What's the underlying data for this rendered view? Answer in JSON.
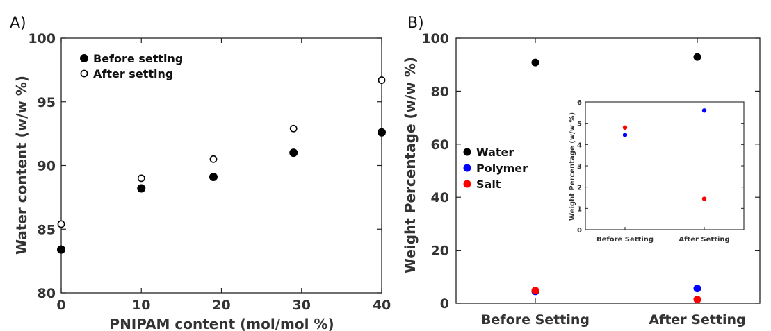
{
  "chart_data": [
    {
      "panel": "A)",
      "type": "scatter",
      "xlabel": "PNIPAM content (mol/mol %)",
      "ylabel": "Water content (w/w %)",
      "xlim": [
        0,
        40
      ],
      "ylim": [
        80,
        100
      ],
      "xticks": [
        "0",
        "10",
        "20",
        "30",
        "40"
      ],
      "yticks": [
        "80",
        "85",
        "90",
        "95",
        "100"
      ],
      "legend_position": "top-left",
      "series": [
        {
          "name": "Before setting",
          "marker": "filled-circle",
          "color": "#000000",
          "x": [
            0,
            10,
            19,
            29,
            40
          ],
          "y": [
            83.4,
            88.2,
            89.1,
            91.0,
            92.6
          ]
        },
        {
          "name": "After setting",
          "marker": "open-circle",
          "color": "#000000",
          "x": [
            0,
            10,
            19,
            29,
            40
          ],
          "y": [
            85.4,
            89.0,
            90.5,
            92.9,
            96.7
          ]
        }
      ]
    },
    {
      "panel": "B)",
      "type": "scatter",
      "ylabel": "Weight Percentage (w/w %)",
      "categories": [
        "Before Setting",
        "After Setting"
      ],
      "ylim": [
        0,
        100
      ],
      "yticks": [
        "0",
        "20",
        "40",
        "60",
        "80",
        "100"
      ],
      "legend_position": "center-left",
      "series": [
        {
          "name": "Water",
          "color": "#000000",
          "values": [
            90.8,
            92.9
          ]
        },
        {
          "name": "Polymer",
          "color": "#0000ff",
          "values": [
            4.5,
            5.6
          ]
        },
        {
          "name": "Salt",
          "color": "#ff0000",
          "values": [
            4.8,
            1.4
          ]
        }
      ],
      "inset": {
        "ylabel": "Weight Percentage (w/w %)",
        "categories": [
          "Before Setting",
          "After Setting"
        ],
        "ylim": [
          0,
          6
        ],
        "yticks": [
          "0",
          "1",
          "2",
          "3",
          "4",
          "5",
          "6"
        ],
        "series": [
          {
            "name": "Polymer",
            "color": "#0000ff",
            "values": [
              4.45,
              5.6
            ]
          },
          {
            "name": "Salt",
            "color": "#ff0000",
            "values": [
              4.8,
              1.45
            ]
          }
        ]
      }
    }
  ]
}
